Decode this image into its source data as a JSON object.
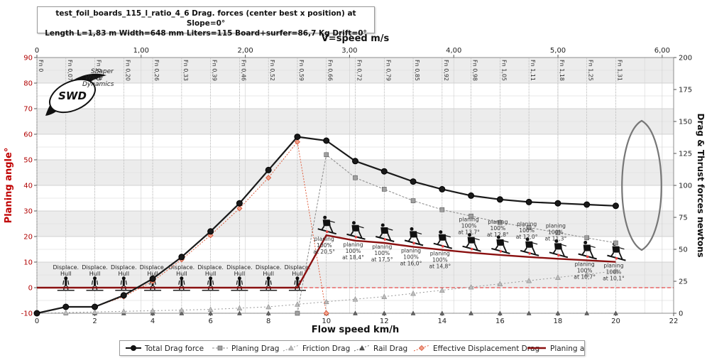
{
  "chart_data": {
    "type": "line",
    "title": "test_foil_boards_115_l_ratio_4_6 Drag. forces (center best x position) at  Slope=0°",
    "subtitle": "Length L=1,83 m Width=648 mm Liters=115 Board+surfer=86,7 Kg Drift=0°",
    "xlabel": "Flow speed km/h",
    "x2label": "V=speed m/s",
    "ylabel_left": "Planing angle°",
    "ylabel_right": "Drag & Thrust forces newtons",
    "xlim": [
      0,
      22
    ],
    "ylim_left": [
      -10,
      90
    ],
    "ylim_right": [
      0,
      200
    ],
    "x2lim": [
      0,
      6.11
    ],
    "x_ticks": [
      "0",
      "2",
      "4",
      "6",
      "8",
      "10",
      "12",
      "14",
      "16",
      "18",
      "20",
      "22"
    ],
    "x2_ticks": [
      "0",
      "1,00",
      "2,00",
      "3,00",
      "4,00",
      "5,00",
      "6,00"
    ],
    "y_left_ticks": [
      "-10",
      "0",
      "10",
      "20",
      "30",
      "40",
      "50",
      "60",
      "70",
      "80",
      "90"
    ],
    "y_right_ticks": [
      "0",
      "25",
      "50",
      "75",
      "100",
      "125",
      "150",
      "175",
      "200"
    ],
    "froude_labels": [
      {
        "x": 0,
        "label": "Fn 0"
      },
      {
        "x": 1,
        "label": "Fn 0,07"
      },
      {
        "x": 2,
        "label": "Fn 0,13"
      },
      {
        "x": 3,
        "label": "Fn 0,20"
      },
      {
        "x": 4,
        "label": "Fn 0,26"
      },
      {
        "x": 5,
        "label": "Fn 0,33"
      },
      {
        "x": 6,
        "label": "Fn 0,39"
      },
      {
        "x": 7,
        "label": "Fn 0,46"
      },
      {
        "x": 8,
        "label": "Fn 0,52"
      },
      {
        "x": 9,
        "label": "Fn 0,59"
      },
      {
        "x": 10,
        "label": "Fn 0,66"
      },
      {
        "x": 11,
        "label": "Fn 0,72"
      },
      {
        "x": 12,
        "label": "Fn 0,79"
      },
      {
        "x": 13,
        "label": "Fn 0,85"
      },
      {
        "x": 14,
        "label": "Fn 0,92"
      },
      {
        "x": 15,
        "label": "Fn 0,98"
      },
      {
        "x": 16,
        "label": "Fn 1,05"
      },
      {
        "x": 17,
        "label": "Fn 1,11"
      },
      {
        "x": 18,
        "label": "Fn 1,18"
      },
      {
        "x": 19,
        "label": "Fn 1,25"
      },
      {
        "x": 20,
        "label": "Fn 1,31"
      }
    ],
    "series": [
      {
        "name": "Total Drag force",
        "axis": "right",
        "color": "#1a1a1a",
        "x": [
          0,
          1,
          2,
          3,
          4,
          5,
          6,
          7,
          8,
          9,
          10,
          11,
          12,
          13,
          14,
          15,
          16,
          17,
          18,
          19,
          20
        ],
        "y": [
          0,
          5,
          5,
          14,
          27,
          44,
          64,
          86,
          112,
          138,
          135,
          119,
          111,
          103,
          97,
          92,
          89,
          87,
          86,
          85,
          84
        ]
      },
      {
        "name": "Planing Drag",
        "axis": "right",
        "color": "#8a8a8a",
        "x": [
          9,
          10,
          11,
          12,
          13,
          14,
          15,
          16,
          17,
          18,
          19,
          20
        ],
        "y": [
          0,
          124,
          106,
          97,
          88,
          81,
          76,
          71,
          67,
          63,
          59,
          55
        ]
      },
      {
        "name": "Friction Drag",
        "axis": "right",
        "color": "#9a9a9a",
        "x": [
          0,
          1,
          2,
          3,
          4,
          5,
          6,
          7,
          8,
          9,
          10,
          11,
          12,
          13,
          14,
          15,
          16,
          17,
          18,
          19,
          20
        ],
        "y": [
          0,
          0.5,
          1,
          1.5,
          2,
          2.5,
          3,
          4,
          5,
          7,
          9,
          11,
          13,
          15.5,
          18,
          20.5,
          23,
          25.5,
          28,
          30.5,
          33
        ]
      },
      {
        "name": "Rail Drag",
        "axis": "right",
        "color": "#555555",
        "x": [
          0,
          1,
          2,
          3,
          4,
          5,
          6,
          7,
          8,
          9,
          10,
          11,
          12,
          13,
          14,
          15,
          16,
          17,
          18,
          19,
          20
        ],
        "y": [
          0,
          0,
          0,
          0,
          0,
          0,
          0,
          0,
          0,
          0,
          0,
          0,
          0,
          0,
          0,
          0,
          0,
          0,
          0,
          0,
          0
        ]
      },
      {
        "name": "Effective Displacement Drag",
        "axis": "right",
        "color": "#e06040",
        "x": [
          0,
          1,
          2,
          3,
          4,
          5,
          6,
          7,
          8,
          9,
          10
        ],
        "y": [
          0,
          5,
          5,
          13,
          25,
          42,
          61,
          82,
          106,
          134,
          0
        ]
      },
      {
        "name": "Planing angle",
        "axis": "left",
        "color": "#c00000",
        "x": [
          0,
          1,
          2,
          3,
          4,
          5,
          6,
          7,
          8,
          9,
          10,
          11,
          12,
          13,
          14,
          15,
          16,
          17,
          18,
          19,
          20
        ],
        "y": [
          0,
          0,
          0,
          0,
          0,
          0,
          0,
          0,
          0,
          0,
          20.5,
          18.4,
          17.5,
          16.0,
          14.8,
          13.7,
          12.8,
          12.0,
          11.3,
          10.7,
          10.1
        ]
      }
    ],
    "annotations": {
      "displacement": [
        {
          "x": 1,
          "label": "Displace. Hull"
        },
        {
          "x": 2,
          "label": "Displace. Hull"
        },
        {
          "x": 3,
          "label": "Displace. Hull"
        },
        {
          "x": 4,
          "label": "Displace. Hull"
        },
        {
          "x": 5,
          "label": "Displace. Hull"
        },
        {
          "x": 6,
          "label": "Displace. Hull"
        },
        {
          "x": 7,
          "label": "Displace. Hull"
        },
        {
          "x": 8,
          "label": "Displace. Hull"
        },
        {
          "x": 9,
          "label": "Displace. Hull"
        }
      ],
      "planing": [
        {
          "x": 10,
          "lines": [
            "planing",
            "100%",
            "at 20,5°"
          ]
        },
        {
          "x": 11,
          "lines": [
            "planing",
            "100%",
            "at 18,4°"
          ]
        },
        {
          "x": 12,
          "lines": [
            "planing",
            "100%",
            "at 17,5°"
          ]
        },
        {
          "x": 13,
          "lines": [
            "planing",
            "100%",
            "at 16,0°"
          ]
        },
        {
          "x": 14,
          "lines": [
            "planing",
            "100%",
            "at 14,8°"
          ]
        },
        {
          "x": 15,
          "lines": [
            "planing",
            "100%",
            "at 13,7°"
          ]
        },
        {
          "x": 16,
          "lines": [
            "planing",
            "100%",
            "at 12,8°"
          ]
        },
        {
          "x": 17,
          "lines": [
            "planing",
            "100%",
            "at 12,0°"
          ]
        },
        {
          "x": 18,
          "lines": [
            "planing",
            "100%",
            "at 11,3°"
          ]
        },
        {
          "x": 19,
          "lines": [
            "planing",
            "100%",
            "at 10,7°"
          ]
        },
        {
          "x": 20,
          "lines": [
            "planing",
            "100%",
            "at 10,1°"
          ]
        }
      ]
    },
    "grid": true,
    "legend_position": "bottom"
  },
  "logo": {
    "text_lines": [
      "Shaper",
      "Wave",
      "Dynamics"
    ],
    "mark": "SWD"
  },
  "colors": {
    "left_axis_label": "#c00000",
    "background": "#ffffff",
    "band": "#ececec"
  }
}
